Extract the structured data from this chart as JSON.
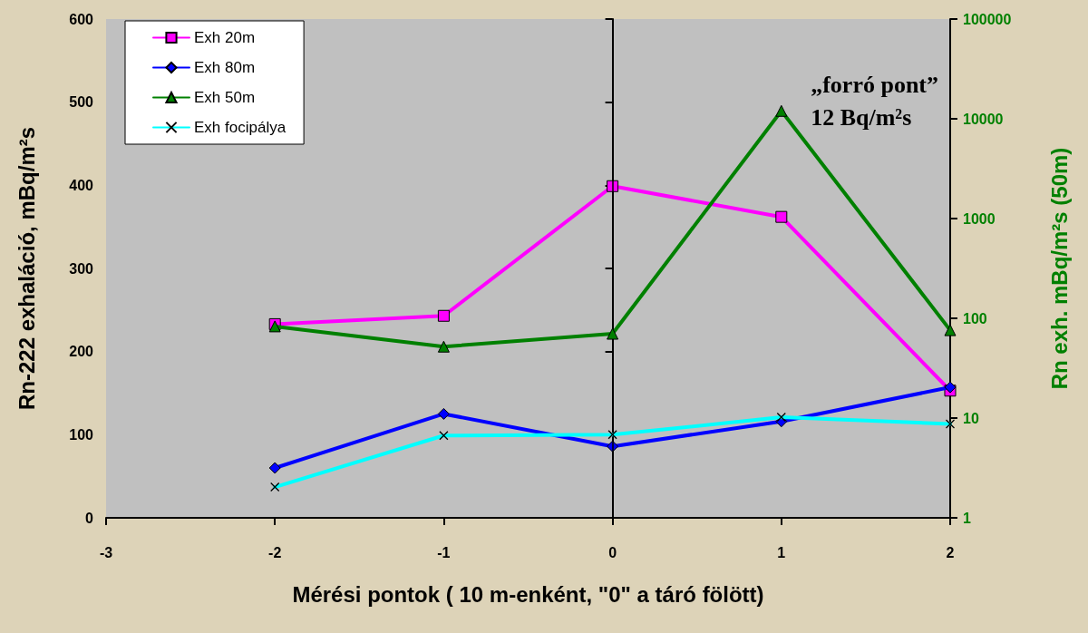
{
  "chart_data": {
    "type": "line",
    "xlabel": "Mérési pontok ( 10 m-enként, \"0\" a táró fölött)",
    "ylabel": "Rn-222 exhaláció, mBq/m²s",
    "y2label": "Rn exh. mBq/m²s (50m)",
    "x": [
      -2,
      -1,
      0,
      1,
      2
    ],
    "xlim": [
      -3,
      2
    ],
    "xticks": [
      -3,
      -2,
      -1,
      0,
      1,
      2
    ],
    "ylim": [
      0,
      600
    ],
    "yticks": [
      0,
      100,
      200,
      300,
      400,
      500,
      600
    ],
    "y2lim": [
      1,
      100000
    ],
    "y2ticks": [
      1,
      10,
      100,
      1000,
      10000,
      100000
    ],
    "log": "y2",
    "grid": false,
    "legend": "top left",
    "series": [
      {
        "name": "Exh 20m",
        "color": "#ff00ff",
        "marker": "square",
        "values": [
          233,
          243,
          399,
          362,
          153
        ]
      },
      {
        "name": "Exh 80m",
        "color": "#0000ff",
        "marker": "diamond",
        "values": [
          60,
          125,
          86,
          116,
          157
        ]
      },
      {
        "name": "Exh 50m",
        "color": "#008000",
        "marker": "triangle",
        "axis": "y2",
        "values": [
          83,
          52,
          70,
          12000,
          76
        ]
      },
      {
        "name": "Exh focipálya",
        "color": "#00ffff",
        "marker": "cross",
        "values": [
          37,
          99,
          100,
          121,
          113
        ]
      }
    ],
    "ref_lines": [
      {
        "axis": "x",
        "value": 0,
        "color": "#000000"
      }
    ],
    "annotations": [
      "„forró pont”\n12 Bq/m²s"
    ]
  }
}
